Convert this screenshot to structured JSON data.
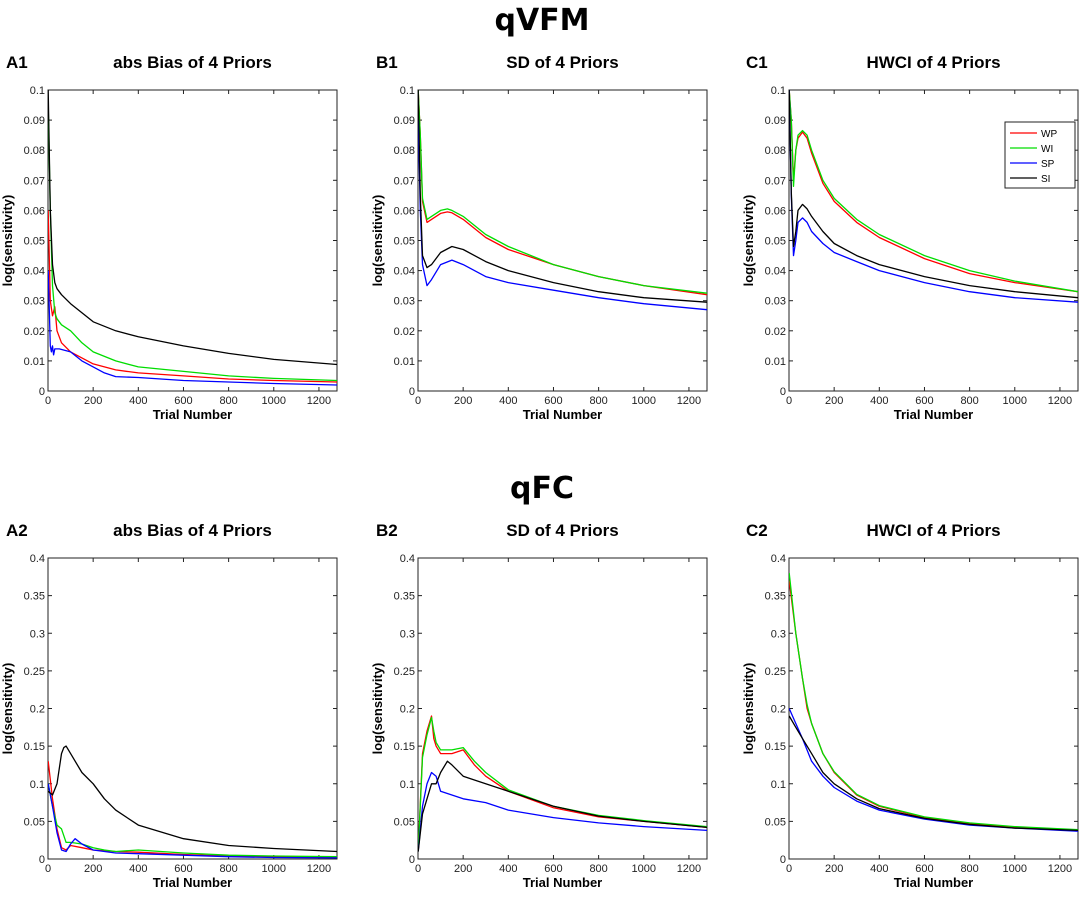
{
  "sections": [
    {
      "title": "qVFM",
      "row": 0
    },
    {
      "title": "qFC",
      "row": 1
    }
  ],
  "colors": {
    "WP": "#ff0000",
    "WI": "#00dd00",
    "SP": "#0000ff",
    "SI": "#000000"
  },
  "chart_data": [
    {
      "id": "A1",
      "section": "qVFM",
      "type": "line",
      "title": "abs Bias of 4 Priors",
      "xlabel": "Trial Number",
      "ylabel": "log(sensitivity)",
      "xlim": [
        0,
        1280
      ],
      "ylim": [
        0,
        0.1
      ],
      "xticks": [
        0,
        200,
        400,
        600,
        800,
        1000,
        1200
      ],
      "yticks": [
        0,
        0.01,
        0.02,
        0.03,
        0.04,
        0.05,
        0.06,
        0.07,
        0.08,
        0.09,
        0.1
      ],
      "legend": false,
      "series": [
        {
          "name": "WP",
          "x": [
            1,
            10,
            20,
            30,
            40,
            60,
            100,
            150,
            200,
            300,
            400,
            600,
            800,
            1000,
            1280
          ],
          "y": [
            0.06,
            0.03,
            0.025,
            0.028,
            0.02,
            0.016,
            0.013,
            0.011,
            0.009,
            0.007,
            0.006,
            0.005,
            0.004,
            0.0035,
            0.003
          ]
        },
        {
          "name": "WI",
          "x": [
            1,
            10,
            20,
            30,
            40,
            60,
            100,
            150,
            200,
            300,
            400,
            600,
            800,
            1000,
            1280
          ],
          "y": [
            0.095,
            0.06,
            0.035,
            0.026,
            0.024,
            0.022,
            0.02,
            0.016,
            0.013,
            0.01,
            0.008,
            0.0065,
            0.005,
            0.0042,
            0.0035
          ]
        },
        {
          "name": "SP",
          "x": [
            1,
            10,
            15,
            20,
            25,
            30,
            50,
            100,
            150,
            200,
            250,
            300,
            400,
            600,
            800,
            1000,
            1280
          ],
          "y": [
            0.04,
            0.015,
            0.013,
            0.015,
            0.012,
            0.014,
            0.014,
            0.013,
            0.01,
            0.008,
            0.006,
            0.0048,
            0.0045,
            0.0035,
            0.003,
            0.0025,
            0.002
          ]
        },
        {
          "name": "SI",
          "x": [
            1,
            10,
            20,
            30,
            40,
            60,
            100,
            150,
            200,
            300,
            400,
            600,
            800,
            1000,
            1280
          ],
          "y": [
            0.1,
            0.06,
            0.042,
            0.036,
            0.034,
            0.032,
            0.029,
            0.026,
            0.023,
            0.02,
            0.018,
            0.015,
            0.0125,
            0.0105,
            0.0088
          ]
        }
      ]
    },
    {
      "id": "B1",
      "section": "qVFM",
      "type": "line",
      "title": "SD of 4 Priors",
      "xlabel": "Trial Number",
      "ylabel": "log(sensitivity)",
      "xlim": [
        0,
        1280
      ],
      "ylim": [
        0,
        0.1
      ],
      "xticks": [
        0,
        200,
        400,
        600,
        800,
        1000,
        1200
      ],
      "yticks": [
        0,
        0.01,
        0.02,
        0.03,
        0.04,
        0.05,
        0.06,
        0.07,
        0.08,
        0.09,
        0.1
      ],
      "legend": false,
      "series": [
        {
          "name": "WP",
          "x": [
            1,
            10,
            20,
            40,
            60,
            100,
            130,
            150,
            200,
            300,
            400,
            600,
            800,
            1000,
            1280
          ],
          "y": [
            0.1,
            0.085,
            0.063,
            0.056,
            0.057,
            0.059,
            0.0595,
            0.0592,
            0.057,
            0.051,
            0.047,
            0.042,
            0.038,
            0.035,
            0.032
          ]
        },
        {
          "name": "WI",
          "x": [
            1,
            10,
            20,
            40,
            60,
            100,
            130,
            150,
            200,
            300,
            400,
            600,
            800,
            1000,
            1280
          ],
          "y": [
            0.1,
            0.085,
            0.064,
            0.057,
            0.058,
            0.06,
            0.0605,
            0.06,
            0.058,
            0.052,
            0.048,
            0.042,
            0.038,
            0.035,
            0.0325
          ]
        },
        {
          "name": "SP",
          "x": [
            1,
            10,
            20,
            40,
            60,
            100,
            150,
            200,
            300,
            400,
            600,
            800,
            1000,
            1280
          ],
          "y": [
            0.09,
            0.06,
            0.042,
            0.035,
            0.037,
            0.042,
            0.0435,
            0.042,
            0.038,
            0.036,
            0.0335,
            0.031,
            0.029,
            0.027
          ]
        },
        {
          "name": "SI",
          "x": [
            1,
            10,
            20,
            40,
            60,
            100,
            150,
            200,
            300,
            400,
            600,
            800,
            1000,
            1280
          ],
          "y": [
            0.1,
            0.065,
            0.045,
            0.041,
            0.042,
            0.046,
            0.048,
            0.047,
            0.043,
            0.04,
            0.036,
            0.033,
            0.031,
            0.0295
          ]
        }
      ]
    },
    {
      "id": "C1",
      "section": "qVFM",
      "type": "line",
      "title": "HWCI of 4 Priors",
      "xlabel": "Trial Number",
      "ylabel": "log(sensitivity)",
      "xlim": [
        0,
        1280
      ],
      "ylim": [
        0,
        0.1
      ],
      "xticks": [
        0,
        200,
        400,
        600,
        800,
        1000,
        1200
      ],
      "yticks": [
        0,
        0.01,
        0.02,
        0.03,
        0.04,
        0.05,
        0.06,
        0.07,
        0.08,
        0.09,
        0.1
      ],
      "legend": true,
      "legend_position": "top-right",
      "legend_entries": [
        "WP",
        "WI",
        "SP",
        "SI"
      ],
      "series": [
        {
          "name": "WP",
          "x": [
            1,
            10,
            20,
            30,
            40,
            60,
            80,
            100,
            150,
            200,
            300,
            400,
            600,
            800,
            1000,
            1280
          ],
          "y": [
            0.1,
            0.09,
            0.07,
            0.08,
            0.084,
            0.086,
            0.084,
            0.079,
            0.069,
            0.063,
            0.056,
            0.051,
            0.044,
            0.039,
            0.036,
            0.033
          ]
        },
        {
          "name": "WI",
          "x": [
            1,
            10,
            20,
            30,
            40,
            60,
            80,
            100,
            150,
            200,
            300,
            400,
            600,
            800,
            1000,
            1280
          ],
          "y": [
            0.1,
            0.09,
            0.068,
            0.08,
            0.085,
            0.0865,
            0.085,
            0.08,
            0.07,
            0.064,
            0.057,
            0.052,
            0.045,
            0.04,
            0.0365,
            0.033
          ]
        },
        {
          "name": "SP",
          "x": [
            1,
            10,
            20,
            30,
            40,
            60,
            80,
            100,
            150,
            200,
            300,
            400,
            600,
            800,
            1000,
            1280
          ],
          "y": [
            0.1,
            0.065,
            0.045,
            0.05,
            0.056,
            0.0575,
            0.056,
            0.053,
            0.049,
            0.046,
            0.043,
            0.04,
            0.036,
            0.033,
            0.031,
            0.0295
          ]
        },
        {
          "name": "SI",
          "x": [
            1,
            10,
            20,
            30,
            40,
            60,
            80,
            100,
            150,
            200,
            300,
            400,
            600,
            800,
            1000,
            1280
          ],
          "y": [
            0.1,
            0.066,
            0.048,
            0.053,
            0.06,
            0.062,
            0.0605,
            0.058,
            0.053,
            0.049,
            0.045,
            0.042,
            0.038,
            0.035,
            0.033,
            0.031
          ]
        }
      ]
    },
    {
      "id": "A2",
      "section": "qFC",
      "type": "line",
      "title": "abs Bias of 4 Priors",
      "xlabel": "Trial Number",
      "ylabel": "log(sensitivity)",
      "xlim": [
        0,
        1280
      ],
      "ylim": [
        0,
        0.4
      ],
      "xticks": [
        0,
        200,
        400,
        600,
        800,
        1000,
        1200
      ],
      "yticks": [
        0,
        0.05,
        0.1,
        0.15,
        0.2,
        0.25,
        0.3,
        0.35,
        0.4
      ],
      "legend": false,
      "series": [
        {
          "name": "WP",
          "x": [
            1,
            20,
            40,
            60,
            80,
            100,
            150,
            200,
            300,
            400,
            600,
            800,
            1000,
            1280
          ],
          "y": [
            0.13,
            0.08,
            0.04,
            0.015,
            0.012,
            0.018,
            0.015,
            0.012,
            0.01,
            0.009,
            0.006,
            0.004,
            0.003,
            0.002
          ]
        },
        {
          "name": "WI",
          "x": [
            1,
            20,
            40,
            60,
            80,
            100,
            150,
            200,
            250,
            300,
            400,
            600,
            800,
            1000,
            1280
          ],
          "y": [
            0.1,
            0.07,
            0.045,
            0.04,
            0.022,
            0.022,
            0.02,
            0.015,
            0.012,
            0.01,
            0.012,
            0.008,
            0.005,
            0.004,
            0.003
          ]
        },
        {
          "name": "SP",
          "x": [
            1,
            20,
            40,
            60,
            80,
            100,
            120,
            150,
            200,
            300,
            400,
            600,
            800,
            1000,
            1280
          ],
          "y": [
            0.1,
            0.07,
            0.035,
            0.012,
            0.01,
            0.02,
            0.027,
            0.02,
            0.012,
            0.008,
            0.007,
            0.005,
            0.003,
            0.002,
            0.0015
          ]
        },
        {
          "name": "SI",
          "x": [
            1,
            20,
            40,
            60,
            70,
            80,
            100,
            150,
            200,
            250,
            300,
            400,
            600,
            800,
            1000,
            1280
          ],
          "y": [
            0.09,
            0.085,
            0.1,
            0.14,
            0.148,
            0.15,
            0.14,
            0.115,
            0.1,
            0.08,
            0.065,
            0.045,
            0.027,
            0.018,
            0.014,
            0.01
          ]
        }
      ]
    },
    {
      "id": "B2",
      "section": "qFC",
      "type": "line",
      "title": "SD of 4 Priors",
      "xlabel": "Trial Number",
      "ylabel": "log(sensitivity)",
      "xlim": [
        0,
        1280
      ],
      "ylim": [
        0,
        0.4
      ],
      "xticks": [
        0,
        200,
        400,
        600,
        800,
        1000,
        1200
      ],
      "yticks": [
        0,
        0.05,
        0.1,
        0.15,
        0.2,
        0.25,
        0.3,
        0.35,
        0.4
      ],
      "legend": false,
      "series": [
        {
          "name": "WP",
          "x": [
            1,
            20,
            40,
            60,
            70,
            80,
            100,
            150,
            200,
            250,
            300,
            400,
            600,
            800,
            1000,
            1280
          ],
          "y": [
            0.01,
            0.14,
            0.17,
            0.19,
            0.16,
            0.15,
            0.14,
            0.14,
            0.145,
            0.125,
            0.11,
            0.09,
            0.068,
            0.056,
            0.05,
            0.042
          ]
        },
        {
          "name": "WI",
          "x": [
            1,
            20,
            40,
            60,
            70,
            80,
            100,
            150,
            200,
            250,
            300,
            400,
            600,
            800,
            1000,
            1280
          ],
          "y": [
            0.01,
            0.135,
            0.165,
            0.188,
            0.17,
            0.155,
            0.145,
            0.145,
            0.148,
            0.13,
            0.115,
            0.092,
            0.07,
            0.058,
            0.051,
            0.043
          ]
        },
        {
          "name": "SP",
          "x": [
            1,
            20,
            40,
            60,
            80,
            100,
            150,
            200,
            300,
            400,
            600,
            800,
            1000,
            1280
          ],
          "y": [
            0.01,
            0.07,
            0.1,
            0.115,
            0.11,
            0.09,
            0.085,
            0.08,
            0.075,
            0.065,
            0.055,
            0.048,
            0.043,
            0.038
          ]
        },
        {
          "name": "SI",
          "x": [
            1,
            20,
            40,
            60,
            80,
            100,
            130,
            150,
            200,
            250,
            300,
            400,
            600,
            800,
            1000,
            1280
          ],
          "y": [
            0.01,
            0.06,
            0.08,
            0.1,
            0.1,
            0.115,
            0.13,
            0.125,
            0.11,
            0.105,
            0.1,
            0.09,
            0.07,
            0.057,
            0.05,
            0.042
          ]
        }
      ]
    },
    {
      "id": "C2",
      "section": "qFC",
      "type": "line",
      "title": "HWCI of 4 Priors",
      "xlabel": "Trial Number",
      "ylabel": "log(sensitivity)",
      "xlim": [
        0,
        1280
      ],
      "ylim": [
        0,
        0.4
      ],
      "xticks": [
        0,
        200,
        400,
        600,
        800,
        1000,
        1200
      ],
      "yticks": [
        0,
        0.05,
        0.1,
        0.15,
        0.2,
        0.25,
        0.3,
        0.35,
        0.4
      ],
      "legend": false,
      "series": [
        {
          "name": "WP",
          "x": [
            1,
            30,
            60,
            80,
            100,
            150,
            200,
            300,
            400,
            600,
            800,
            1000,
            1280
          ],
          "y": [
            0.37,
            0.3,
            0.24,
            0.2,
            0.18,
            0.14,
            0.115,
            0.085,
            0.07,
            0.055,
            0.047,
            0.042,
            0.038
          ]
        },
        {
          "name": "WI",
          "x": [
            1,
            30,
            60,
            80,
            100,
            150,
            200,
            300,
            400,
            600,
            800,
            1000,
            1280
          ],
          "y": [
            0.38,
            0.3,
            0.24,
            0.205,
            0.18,
            0.14,
            0.116,
            0.086,
            0.071,
            0.056,
            0.048,
            0.043,
            0.039
          ]
        },
        {
          "name": "SP",
          "x": [
            1,
            30,
            60,
            100,
            150,
            200,
            300,
            400,
            600,
            800,
            1000,
            1280
          ],
          "y": [
            0.2,
            0.18,
            0.16,
            0.13,
            0.11,
            0.095,
            0.077,
            0.065,
            0.053,
            0.045,
            0.041,
            0.037
          ]
        },
        {
          "name": "SI",
          "x": [
            1,
            30,
            60,
            100,
            150,
            200,
            300,
            400,
            600,
            800,
            1000,
            1280
          ],
          "y": [
            0.19,
            0.175,
            0.16,
            0.14,
            0.115,
            0.1,
            0.08,
            0.067,
            0.054,
            0.046,
            0.041,
            0.038
          ]
        }
      ]
    }
  ]
}
